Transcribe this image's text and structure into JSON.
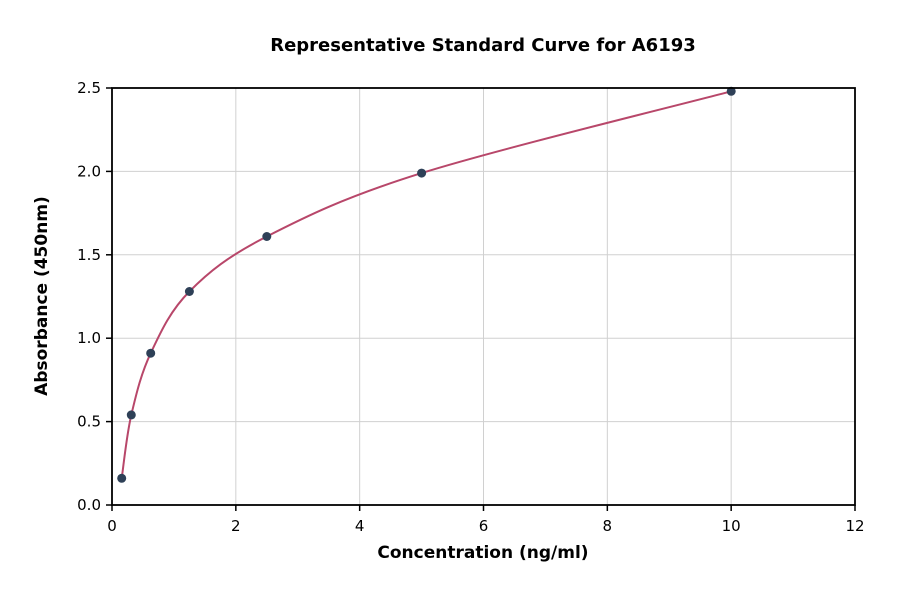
{
  "chart_data": {
    "type": "scatter",
    "title": "Representative Standard Curve for A6193",
    "xlabel": "Concentration (ng/ml)",
    "ylabel": "Absorbance (450nm)",
    "x": [
      0.156,
      0.3125,
      0.625,
      1.25,
      2.5,
      5,
      10
    ],
    "y": [
      0.16,
      0.54,
      0.91,
      1.28,
      1.61,
      1.99,
      2.48
    ],
    "xlim": [
      0,
      12
    ],
    "ylim": [
      0,
      2.5
    ],
    "xticks": [
      0,
      2,
      4,
      6,
      8,
      10,
      12
    ],
    "xtick_labels": [
      "0",
      "2",
      "4",
      "6",
      "8",
      "10",
      "12"
    ],
    "yticks": [
      0,
      0.5,
      1.0,
      1.5,
      2.0,
      2.5
    ],
    "ytick_labels": [
      "0.0",
      "0.5",
      "1.0",
      "1.5",
      "2.0",
      "2.5"
    ],
    "grid": true,
    "legend": false,
    "curve": {
      "type": "smooth-fit-through-points",
      "description": "standard curve fit line through all data points"
    },
    "colors": {
      "points": "#2e4057",
      "curve": "#b8476a",
      "grid": "#d0d0d0",
      "spine": "#000000",
      "background": "#ffffff"
    }
  }
}
